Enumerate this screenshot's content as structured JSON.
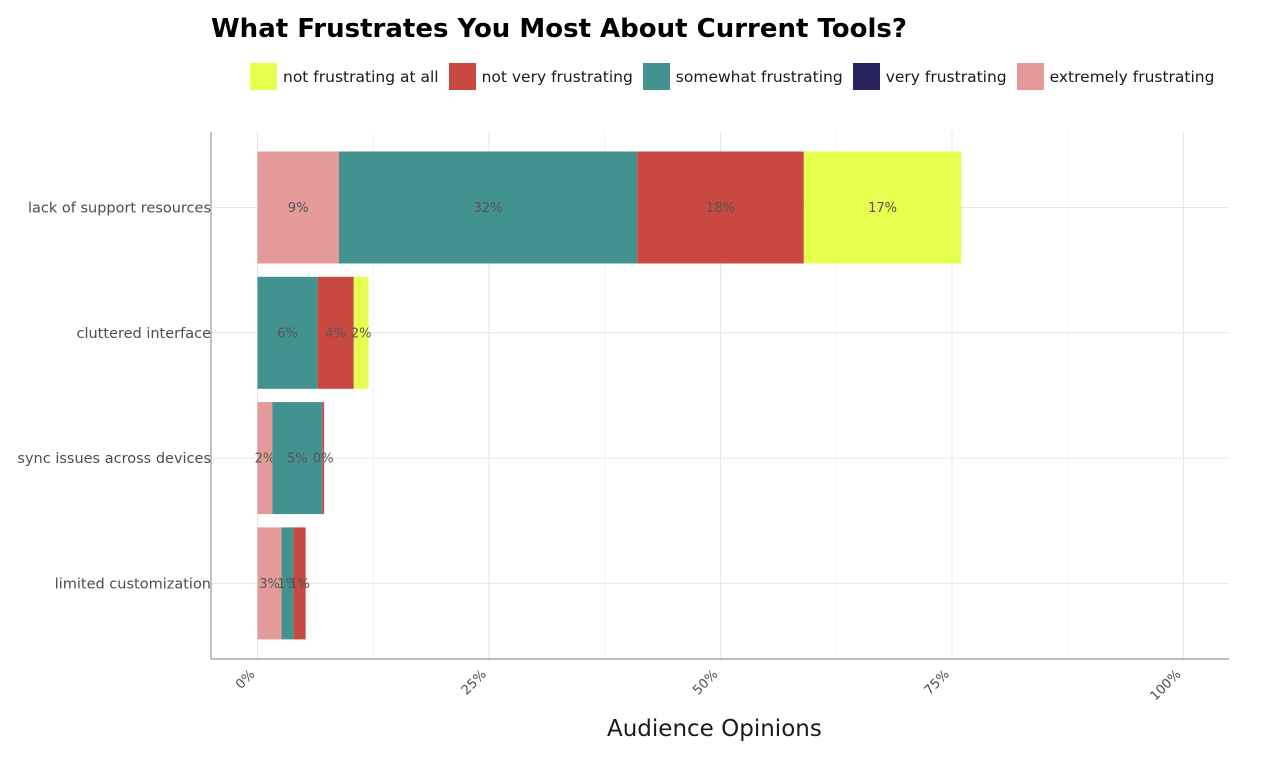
{
  "chart_data": {
    "type": "bar",
    "orientation": "horizontal",
    "stacked": true,
    "title": "What Frustrates You Most About Current Tools?",
    "xlabel": "Audience Opinions",
    "ylabel": "",
    "xlim": [
      0,
      100
    ],
    "x_ticks": [
      0,
      25,
      50,
      75,
      100
    ],
    "x_tick_labels": [
      "0%",
      "25%",
      "50%",
      "75%",
      "100%"
    ],
    "grid": true,
    "legend_position": "top",
    "categories": [
      "lack of support resources",
      "cluttered interface",
      "sync issues across devices",
      "limited customization"
    ],
    "stack_order": [
      "extremely frustrating",
      "very frustrating",
      "somewhat frustrating",
      "not very frustrating",
      "not frustrating at all"
    ],
    "series": [
      {
        "name": "not frustrating at all",
        "color": "#e6ff4f",
        "values": [
          17,
          1.6,
          0,
          0
        ],
        "labels": [
          "17%",
          "2%",
          "",
          ""
        ]
      },
      {
        "name": "not very frustrating",
        "color": "#c9483f",
        "values": [
          18,
          3.9,
          0.2,
          1.3
        ],
        "labels": [
          "18%",
          "4%",
          "0%",
          "1%"
        ]
      },
      {
        "name": "somewhat frustrating",
        "color": "#42928f",
        "values": [
          32.2,
          6.5,
          5.4,
          1.3
        ],
        "labels": [
          "32%",
          "6%",
          "5%",
          "1%"
        ]
      },
      {
        "name": "very frustrating",
        "color": "#28235d",
        "values": [
          0,
          0,
          0,
          0
        ],
        "labels": [
          "",
          "",
          "",
          ""
        ]
      },
      {
        "name": "extremely frustrating",
        "color": "#e39a99",
        "values": [
          8.8,
          0,
          1.6,
          2.6
        ],
        "labels": [
          "9%",
          "",
          "2%",
          "3%"
        ]
      }
    ]
  }
}
